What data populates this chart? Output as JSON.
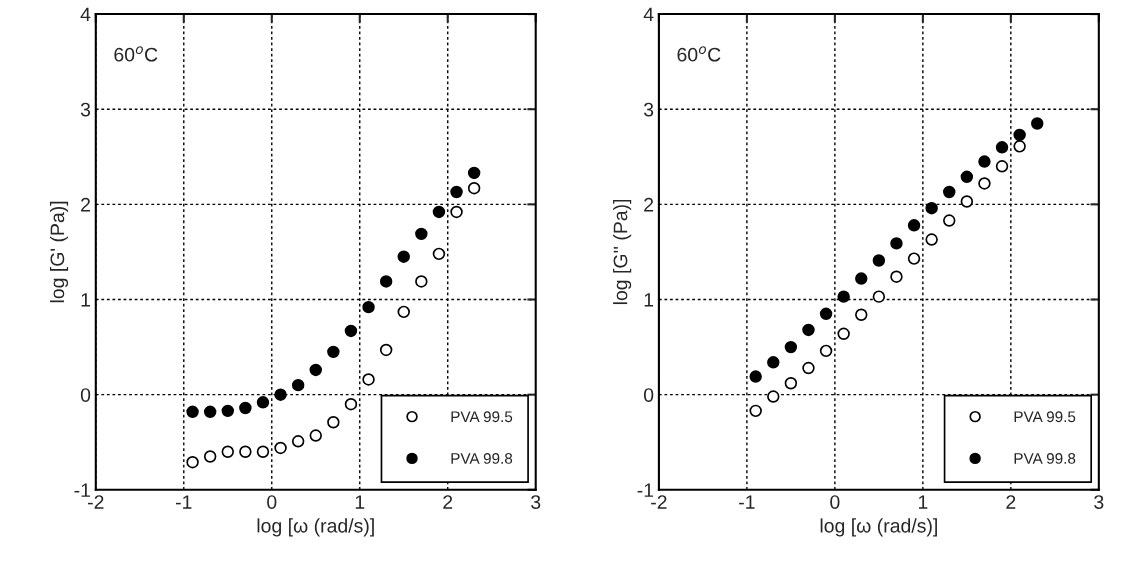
{
  "chart_data": [
    {
      "type": "scatter",
      "xlabel": "log [ω (rad/s)]",
      "ylabel": "log [G' (Pa)]",
      "annotations": [
        "60$^{o}$C"
      ],
      "x": [
        -0.9,
        -0.7,
        -0.5,
        -0.3,
        -0.1,
        0.1,
        0.3,
        0.5,
        0.7,
        0.9,
        1.1,
        1.3,
        1.5,
        1.7,
        1.9,
        2.1,
        2.3
      ],
      "series": [
        {
          "name": "PVA 99.5",
          "color": "#ffffff",
          "values": [
            -0.71,
            -0.65,
            -0.6,
            -0.6,
            -0.6,
            -0.56,
            -0.49,
            -0.43,
            -0.29,
            -0.1,
            0.16,
            0.47,
            0.87,
            1.19,
            1.48,
            1.92,
            2.17
          ]
        },
        {
          "name": "PVA 99.8",
          "color": "#000000",
          "values": [
            -0.18,
            -0.18,
            -0.17,
            -0.14,
            -0.08,
            0.0,
            0.1,
            0.26,
            0.45,
            0.67,
            0.92,
            1.19,
            1.45,
            1.69,
            1.92,
            2.13,
            2.33
          ]
        }
      ],
      "xlim": [
        -2,
        3
      ],
      "xticks": [
        -2,
        -1,
        0,
        1,
        2,
        3
      ],
      "ylim": [
        -1,
        4
      ],
      "yticks": [
        -1,
        0,
        1,
        2,
        3,
        4
      ],
      "grid": true,
      "legend": "bottom right",
      "marker": "circle"
    },
    {
      "type": "scatter",
      "xlabel": "log [ω (rad/s)]",
      "ylabel": "log [G'' (Pa)]",
      "annotations": [
        "60$^{o}$C"
      ],
      "x": [
        -0.9,
        -0.7,
        -0.5,
        -0.3,
        -0.1,
        0.1,
        0.3,
        0.5,
        0.7,
        0.9,
        1.1,
        1.3,
        1.5,
        1.7,
        1.9,
        2.1,
        2.3
      ],
      "series": [
        {
          "name": "PVA 99.5",
          "color": "#ffffff",
          "values": [
            -0.17,
            -0.02,
            0.12,
            0.28,
            0.46,
            0.64,
            0.84,
            1.03,
            1.24,
            1.43,
            1.63,
            1.83,
            2.03,
            2.22,
            2.4,
            2.61,
            null
          ]
        },
        {
          "name": "PVA 99.8",
          "color": "#000000",
          "values": [
            0.19,
            0.34,
            0.5,
            0.68,
            0.85,
            1.03,
            1.22,
            1.41,
            1.59,
            1.78,
            1.96,
            2.13,
            2.29,
            2.45,
            2.6,
            2.73,
            2.85
          ]
        }
      ],
      "xlim": [
        -2,
        3
      ],
      "xticks": [
        -2,
        -1,
        0,
        1,
        2,
        3
      ],
      "ylim": [
        -1,
        4
      ],
      "yticks": [
        -1,
        0,
        1,
        2,
        3,
        4
      ],
      "grid": true,
      "legend": "bottom right",
      "marker": "circle"
    }
  ]
}
